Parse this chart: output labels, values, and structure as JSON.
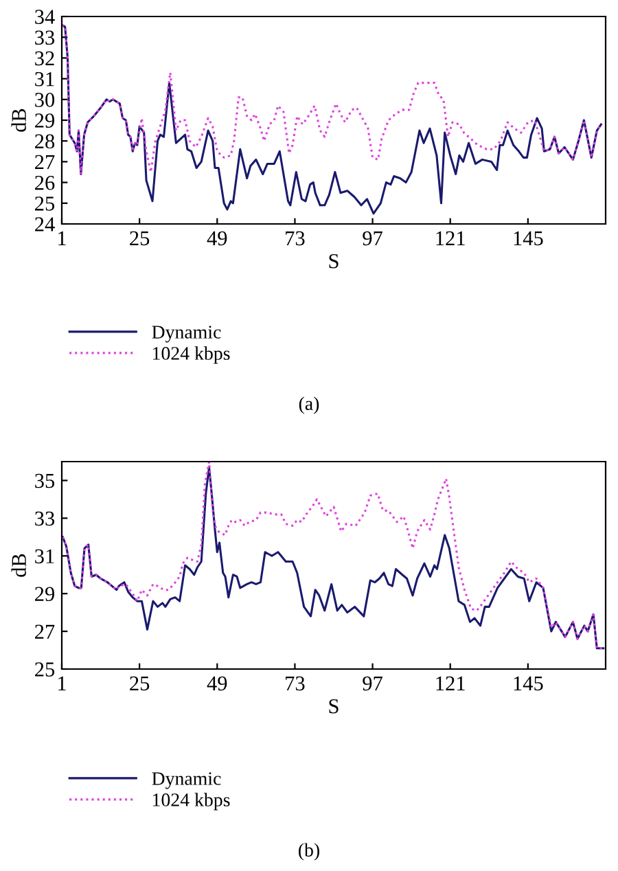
{
  "chart_data": [
    {
      "type": "line",
      "xlabel": "S",
      "ylabel": "dB",
      "annotations": [
        "(a)"
      ],
      "xlim": [
        1,
        169
      ],
      "xticks": [
        1,
        25,
        49,
        73,
        97,
        121,
        145
      ],
      "ylim": [
        24,
        34
      ],
      "yticks": [
        24,
        25,
        26,
        27,
        28,
        29,
        30,
        31,
        32,
        33,
        34
      ],
      "grid": false,
      "legend": "bottom",
      "marker": "none",
      "series": [
        {
          "name": "Dynamic",
          "color": "#1a1a6e",
          "line_style": "solid",
          "x": [
            1,
            2,
            2.8,
            3.4,
            5,
            5.7,
            6.2,
            6.9,
            7.9,
            9,
            10.9,
            13,
            14.8,
            15.8,
            16.8,
            18.9,
            19.8,
            20.8,
            21.5,
            22.2,
            22.9,
            23.6,
            24.3,
            25,
            26.4,
            27.1,
            29,
            30.6,
            31.4,
            32.5,
            34.2,
            36.3,
            37.7,
            39.1,
            39.8,
            41,
            42.6,
            44.1,
            46.2,
            47.6,
            48.3,
            49.4,
            51.1,
            52.1,
            53.2,
            53.9,
            56.1,
            58.2,
            59.3,
            61,
            63.1,
            64.5,
            66.6,
            68.3,
            70.9,
            71.6,
            73.4,
            75.1,
            76.3,
            77.7,
            78.7,
            79.3,
            80.8,
            82.2,
            83.6,
            85.4,
            87.1,
            89.2,
            91.4,
            93.5,
            95.3,
            97.3,
            99.5,
            101.2,
            102.6,
            103.6,
            105.5,
            107.3,
            109,
            111.5,
            112.8,
            114.7,
            116.8,
            118.2,
            119.3,
            121,
            122.7,
            123.8,
            125,
            126.7,
            128.8,
            130.9,
            133.7,
            135.4,
            136.3,
            137.3,
            138.7,
            140.5,
            142.2,
            143.6,
            144.7,
            146,
            147.8,
            149.3,
            150,
            151.8,
            153.2,
            154.5,
            156.3,
            158.9,
            160.6,
            162.3,
            164.6,
            166.3,
            167.6
          ],
          "values": [
            33.6,
            33.5,
            32,
            28.3,
            27.9,
            27.5,
            28.5,
            26.4,
            28.3,
            28.9,
            29.2,
            29.6,
            30.0,
            29.9,
            30.0,
            29.8,
            29.1,
            29.0,
            28.3,
            28.2,
            27.5,
            27.9,
            27.8,
            28.7,
            28.4,
            26.1,
            25.1,
            28.0,
            28.3,
            28.2,
            30.8,
            27.9,
            28.1,
            28.3,
            27.6,
            27.5,
            26.7,
            27.0,
            28.5,
            28.0,
            26.7,
            26.7,
            25.0,
            24.7,
            25.1,
            25.0,
            27.6,
            26.2,
            26.8,
            27.1,
            26.4,
            26.9,
            26.9,
            27.5,
            25.1,
            24.9,
            26.5,
            25.2,
            25.1,
            25.9,
            26.0,
            25.5,
            24.9,
            24.9,
            25.4,
            26.5,
            25.5,
            25.6,
            25.3,
            24.9,
            25.2,
            24.5,
            25.0,
            26.0,
            25.9,
            26.3,
            26.2,
            26.0,
            26.5,
            28.5,
            27.9,
            28.6,
            27.3,
            25.0,
            28.4,
            27.3,
            26.4,
            27.3,
            27.0,
            27.9,
            26.9,
            27.1,
            27.0,
            26.6,
            27.8,
            27.8,
            28.5,
            27.8,
            27.5,
            27.2,
            27.2,
            28.3,
            29.1,
            28.6,
            27.5,
            27.6,
            28.2,
            27.4,
            27.7,
            27.1,
            28.0,
            29.0,
            27.2,
            28.5,
            28.8
          ]
        },
        {
          "name": "1024 kbps",
          "color": "#e040e0",
          "line_style": "dotted",
          "x": [
            1,
            2,
            2.8,
            3.4,
            5,
            5.7,
            6.2,
            6.9,
            7.9,
            9,
            10.9,
            13,
            14.8,
            15.8,
            16.8,
            18.9,
            19.8,
            20.8,
            21.5,
            22.2,
            22.9,
            23.6,
            24.3,
            25.7,
            27.1,
            28.5,
            29.9,
            31.6,
            33,
            34.5,
            36.3,
            37.7,
            39.1,
            40.5,
            42.4,
            44.1,
            46.2,
            47.6,
            49,
            51.1,
            53.2,
            54.2,
            55.6,
            56.8,
            58.2,
            59.6,
            60.7,
            62.4,
            63.5,
            65.2,
            66.6,
            67.8,
            69.5,
            71.2,
            72.3,
            73.7,
            75.4,
            77.2,
            79.1,
            80.8,
            82.2,
            83.6,
            85.7,
            87.1,
            88.5,
            90.6,
            92.1,
            94.2,
            95.6,
            97,
            98.7,
            99.8,
            101.9,
            104.1,
            106.2,
            108.3,
            109.7,
            111.1,
            113.9,
            116.1,
            117.5,
            118.9,
            119.6,
            120.3,
            121.7,
            123.8,
            125.2,
            127.4,
            129.5,
            132.3,
            134.4,
            136.5,
            138.7,
            140.8,
            142.9,
            145,
            147.1,
            150,
            151.8,
            153.2,
            154.5,
            156.3,
            158.9,
            160.6,
            162.3,
            164.6,
            166.3,
            167.6
          ],
          "values": [
            33.6,
            33.5,
            32,
            28.3,
            27.9,
            27.5,
            28.5,
            26.4,
            28.3,
            28.9,
            29.2,
            29.6,
            30.0,
            29.9,
            30.0,
            29.8,
            29.1,
            29.0,
            28.3,
            28.2,
            27.5,
            27.9,
            27.8,
            29.1,
            27.5,
            26.5,
            28.0,
            28.8,
            29.5,
            31.3,
            28.5,
            29.0,
            29.0,
            28.0,
            27.7,
            28.2,
            29.1,
            28.7,
            27.5,
            27.2,
            27.3,
            28.0,
            30.1,
            30.1,
            29.2,
            29.0,
            29.3,
            28.6,
            28.0,
            28.8,
            29.0,
            29.7,
            29.4,
            27.4,
            27.8,
            29.2,
            28.8,
            29.2,
            29.7,
            28.5,
            28.2,
            28.9,
            29.8,
            29.3,
            28.9,
            29.5,
            29.6,
            29.0,
            28.6,
            27.2,
            27.1,
            28.1,
            29.0,
            29.3,
            29.5,
            29.5,
            30.3,
            30.8,
            30.8,
            30.8,
            30.2,
            30.0,
            29.1,
            28.2,
            28.9,
            28.8,
            28.4,
            28.1,
            27.8,
            27.6,
            27.6,
            28.0,
            28.9,
            28.6,
            28.4,
            28.9,
            29.0,
            27.5,
            27.6,
            28.2,
            27.4,
            27.7,
            27.1,
            28.0,
            29.0,
            27.2,
            28.5,
            28.8
          ]
        }
      ]
    },
    {
      "type": "line",
      "xlabel": "S",
      "ylabel": "dB",
      "annotations": [
        "(b)"
      ],
      "xlim": [
        1,
        169
      ],
      "xticks": [
        1,
        25,
        49,
        73,
        97,
        121,
        145
      ],
      "ylim": [
        25,
        36
      ],
      "yticks": [
        25,
        27,
        29,
        31,
        33,
        35
      ],
      "grid": false,
      "legend": "bottom",
      "marker": "none",
      "series": [
        {
          "name": "Dynamic",
          "color": "#1a1a6e",
          "line_style": "solid",
          "x": [
            1.3,
            2.4,
            3.8,
            5,
            6.2,
            7,
            8,
            9.2,
            10.2,
            11.6,
            13,
            15.1,
            16.5,
            17.9,
            18.6,
            19.4,
            20.3,
            21.5,
            22.9,
            24.3,
            25.7,
            27.4,
            29.2,
            30.6,
            32.1,
            33,
            34.5,
            36,
            37.4,
            39.1,
            40.5,
            41.9,
            42.9,
            44.1,
            45.5,
            46.5,
            47.3,
            48.3,
            49,
            49.7,
            50.8,
            51.5,
            52.5,
            53.9,
            55.1,
            56.1,
            58.2,
            59.6,
            61,
            62.4,
            63.8,
            65.9,
            67.8,
            70.2,
            72.3,
            73.7,
            75.8,
            77.9,
            79.3,
            80.5,
            82.2,
            84.3,
            86.1,
            87.5,
            89.2,
            91.5,
            94.3,
            96.3,
            97.7,
            99.1,
            100.5,
            101.9,
            103.1,
            104.2,
            106.2,
            107.6,
            109.4,
            110.8,
            113,
            114.8,
            116.1,
            116.9,
            119.3,
            120.7,
            123.6,
            125.4,
            127.1,
            128.5,
            130.3,
            131.7,
            133,
            135.6,
            139.8,
            141.9,
            143.8,
            145.4,
            147.6,
            149.7,
            152.2,
            153.6,
            156.5,
            158.9,
            160.3,
            162.4,
            163.5,
            165.2,
            166.3,
            168.3
          ],
          "values": [
            32.0,
            31.5,
            30.1,
            29.4,
            29.3,
            29.3,
            31.4,
            31.6,
            29.9,
            30.0,
            29.8,
            29.6,
            29.4,
            29.2,
            29.4,
            29.5,
            29.6,
            29.1,
            28.8,
            28.6,
            28.6,
            27.1,
            28.6,
            28.3,
            28.5,
            28.3,
            28.7,
            28.8,
            28.6,
            30.5,
            30.3,
            30.0,
            30.4,
            30.7,
            34.3,
            35.7,
            34.3,
            32.4,
            31.2,
            31.7,
            30.1,
            29.9,
            28.8,
            30.0,
            29.9,
            29.3,
            29.5,
            29.6,
            29.5,
            29.6,
            31.2,
            31.0,
            31.2,
            30.7,
            30.7,
            30.1,
            28.3,
            27.8,
            29.2,
            28.9,
            28.1,
            29.5,
            28.1,
            28.4,
            28.0,
            28.3,
            27.8,
            29.7,
            29.6,
            29.8,
            30.1,
            29.5,
            29.4,
            30.3,
            30.0,
            29.8,
            28.9,
            29.8,
            30.6,
            29.9,
            30.5,
            30.3,
            32.1,
            31.4,
            28.6,
            28.4,
            27.5,
            27.7,
            27.3,
            28.3,
            28.3,
            29.3,
            30.3,
            29.9,
            29.8,
            28.6,
            29.6,
            29.3,
            27.0,
            27.5,
            26.7,
            27.5,
            26.6,
            27.3,
            27.0,
            27.9,
            26.1,
            26.1
          ]
        },
        {
          "name": "1024 kbps",
          "color": "#e040e0",
          "line_style": "dotted",
          "x": [
            1.3,
            2.4,
            3.8,
            5,
            6.2,
            7,
            8,
            9.2,
            10.2,
            11.6,
            13,
            15.1,
            16.5,
            17.9,
            18.6,
            20.8,
            22.9,
            24.3,
            25.7,
            27.4,
            29.2,
            30.6,
            32.5,
            33.9,
            35.6,
            37.4,
            38.4,
            39.8,
            41.2,
            42.9,
            44.1,
            45.2,
            46.5,
            47.6,
            48.3,
            49.4,
            50.4,
            51.4,
            52.5,
            53.5,
            54.6,
            56.1,
            57.5,
            58.9,
            61,
            62.4,
            64.5,
            66.6,
            68.8,
            70.2,
            72.3,
            73.7,
            75.1,
            76.5,
            78.7,
            79.8,
            82.6,
            85,
            87.3,
            88.9,
            91.8,
            94.6,
            96.3,
            98.6,
            100.2,
            101.9,
            104.5,
            106.6,
            108,
            109.4,
            110.8,
            113,
            114.8,
            116.1,
            117.2,
            118.6,
            119.7,
            120.7,
            122.1,
            123.6,
            125.4,
            127.4,
            129.2,
            130.6,
            132.7,
            135.6,
            137.7,
            139.8,
            141.9,
            143.8,
            145.4,
            147.6,
            149.7,
            152.2,
            153.6,
            156.5,
            158.9,
            160.3,
            162.4,
            163.5,
            165.2,
            166.3,
            168.3
          ],
          "values": [
            32.0,
            31.5,
            30.1,
            29.4,
            29.3,
            29.3,
            31.4,
            31.6,
            29.9,
            30.0,
            29.8,
            29.6,
            29.4,
            29.2,
            29.4,
            29.5,
            29.0,
            28.6,
            29.2,
            28.9,
            29.5,
            29.4,
            29.2,
            29.2,
            29.5,
            29.9,
            30.6,
            30.9,
            30.8,
            30.7,
            31.6,
            34.8,
            36.0,
            33.5,
            32.6,
            32.3,
            32.2,
            32.1,
            32.6,
            32.9,
            32.8,
            32.9,
            32.6,
            32.8,
            32.9,
            33.3,
            33.3,
            33.2,
            33.2,
            32.7,
            32.6,
            32.9,
            32.8,
            33.2,
            33.7,
            34.0,
            33.1,
            33.6,
            32.3,
            32.7,
            32.6,
            33.3,
            34.2,
            34.3,
            33.4,
            33.4,
            32.8,
            33.1,
            32.3,
            31.4,
            32.3,
            32.9,
            32.4,
            33.2,
            34.0,
            34.6,
            35.1,
            34.1,
            32.3,
            30.4,
            29.2,
            28.2,
            28.1,
            28.4,
            28.9,
            29.6,
            30.1,
            30.7,
            30.3,
            30.1,
            29.6,
            29.8,
            29.3,
            27.2,
            27.5,
            26.7,
            27.5,
            26.6,
            27.3,
            27.0,
            27.9,
            26.1,
            26.1
          ]
        }
      ]
    }
  ]
}
